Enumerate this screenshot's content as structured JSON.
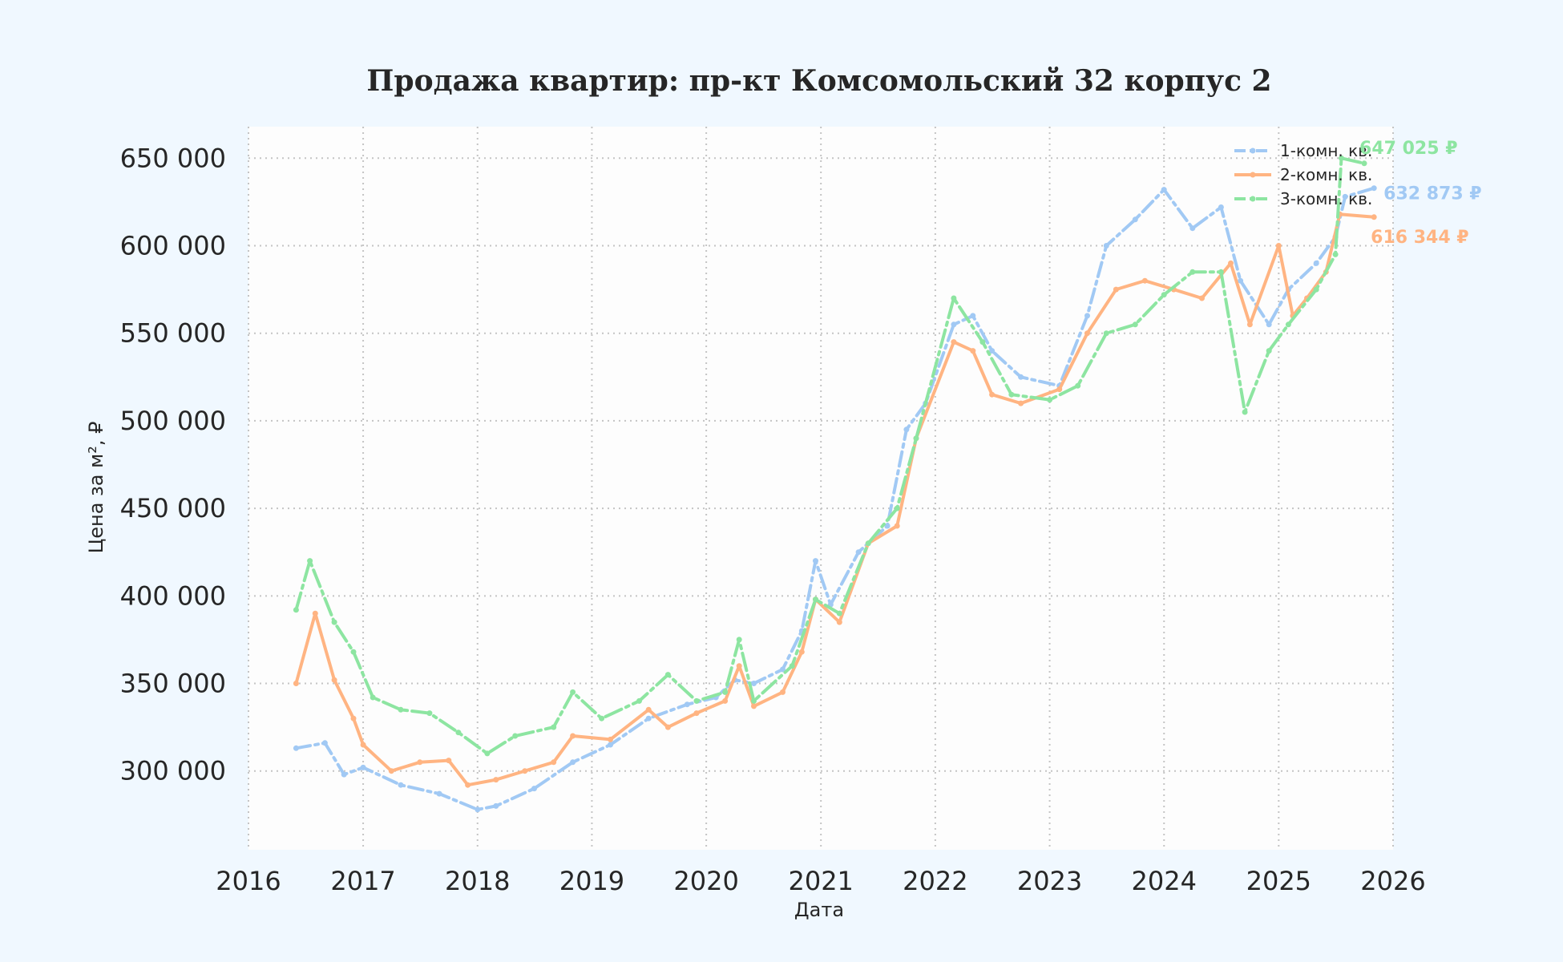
{
  "chart_data": {
    "type": "line",
    "title": "Продажа квартир: пр-кт Комсомольский 32 корпус 2",
    "xlabel": "Дата",
    "ylabel": "Цена за м², ₽",
    "xlim": [
      "2016-01-01",
      "2026-01-01"
    ],
    "ylim": [
      255000,
      668000
    ],
    "grid": true,
    "grid_style": "dotted",
    "legend_position": "top-right",
    "x_ticks": [
      "2016",
      "2017",
      "2018",
      "2019",
      "2020",
      "2021",
      "2022",
      "2023",
      "2024",
      "2025",
      "2026"
    ],
    "y_ticks": [
      {
        "value": 300000,
        "label": "300 000"
      },
      {
        "value": 350000,
        "label": "350 000"
      },
      {
        "value": 400000,
        "label": "400 000"
      },
      {
        "value": 450000,
        "label": "450 000"
      },
      {
        "value": 500000,
        "label": "500 000"
      },
      {
        "value": 550000,
        "label": "550 000"
      },
      {
        "value": 600000,
        "label": "600 000"
      },
      {
        "value": 650000,
        "label": "650 000"
      }
    ],
    "series": [
      {
        "name": "1-комн. кв.",
        "color": "#a1c9f4",
        "dash": "18,6,4,6",
        "end_label": "632 873 ₽",
        "points": [
          [
            "2016-06-01",
            313000
          ],
          [
            "2016-09-01",
            316000
          ],
          [
            "2016-11-01",
            298000
          ],
          [
            "2017-01-01",
            302000
          ],
          [
            "2017-05-01",
            292000
          ],
          [
            "2017-09-01",
            287000
          ],
          [
            "2018-01-01",
            278000
          ],
          [
            "2018-03-01",
            280000
          ],
          [
            "2018-07-01",
            290000
          ],
          [
            "2018-11-01",
            305000
          ],
          [
            "2019-03-01",
            315000
          ],
          [
            "2019-07-01",
            330000
          ],
          [
            "2019-11-01",
            338000
          ],
          [
            "2020-02-01",
            342000
          ],
          [
            "2020-04-01",
            352000
          ],
          [
            "2020-06-01",
            350000
          ],
          [
            "2020-09-01",
            358000
          ],
          [
            "2020-11-01",
            380000
          ],
          [
            "2020-12-15",
            420000
          ],
          [
            "2021-02-01",
            395000
          ],
          [
            "2021-05-01",
            425000
          ],
          [
            "2021-08-01",
            440000
          ],
          [
            "2021-10-01",
            495000
          ],
          [
            "2021-12-01",
            510000
          ],
          [
            "2022-03-01",
            555000
          ],
          [
            "2022-05-01",
            560000
          ],
          [
            "2022-07-01",
            540000
          ],
          [
            "2022-10-01",
            525000
          ],
          [
            "2023-02-01",
            520000
          ],
          [
            "2023-05-01",
            560000
          ],
          [
            "2023-07-01",
            600000
          ],
          [
            "2023-10-01",
            615000
          ],
          [
            "2024-01-01",
            632000
          ],
          [
            "2024-04-01",
            610000
          ],
          [
            "2024-07-01",
            622000
          ],
          [
            "2024-09-01",
            580000
          ],
          [
            "2024-12-01",
            555000
          ],
          [
            "2025-02-01",
            575000
          ],
          [
            "2025-05-01",
            590000
          ],
          [
            "2025-07-01",
            605000
          ],
          [
            "2025-08-01",
            628000
          ],
          [
            "2025-11-01",
            632873
          ]
        ]
      },
      {
        "name": "2-комн. кв.",
        "color": "#ffb482",
        "dash": "",
        "end_label": "616 344 ₽",
        "points": [
          [
            "2016-06-01",
            350000
          ],
          [
            "2016-08-01",
            390000
          ],
          [
            "2016-10-01",
            352000
          ],
          [
            "2016-12-01",
            330000
          ],
          [
            "2017-01-01",
            315000
          ],
          [
            "2017-04-01",
            300000
          ],
          [
            "2017-07-01",
            305000
          ],
          [
            "2017-10-01",
            306000
          ],
          [
            "2017-12-01",
            292000
          ],
          [
            "2018-03-01",
            295000
          ],
          [
            "2018-06-01",
            300000
          ],
          [
            "2018-09-01",
            305000
          ],
          [
            "2018-11-01",
            320000
          ],
          [
            "2019-03-01",
            318000
          ],
          [
            "2019-07-01",
            335000
          ],
          [
            "2019-09-01",
            325000
          ],
          [
            "2019-12-01",
            333000
          ],
          [
            "2020-03-01",
            340000
          ],
          [
            "2020-04-15",
            360000
          ],
          [
            "2020-06-01",
            337000
          ],
          [
            "2020-09-01",
            345000
          ],
          [
            "2020-11-01",
            368000
          ],
          [
            "2020-12-15",
            398000
          ],
          [
            "2021-03-01",
            385000
          ],
          [
            "2021-06-01",
            430000
          ],
          [
            "2021-09-01",
            440000
          ],
          [
            "2021-11-01",
            490000
          ],
          [
            "2022-03-01",
            545000
          ],
          [
            "2022-05-01",
            540000
          ],
          [
            "2022-07-01",
            515000
          ],
          [
            "2022-10-01",
            510000
          ],
          [
            "2023-02-01",
            518000
          ],
          [
            "2023-05-01",
            550000
          ],
          [
            "2023-08-01",
            575000
          ],
          [
            "2023-11-01",
            580000
          ],
          [
            "2024-02-01",
            575000
          ],
          [
            "2024-05-01",
            570000
          ],
          [
            "2024-08-01",
            590000
          ],
          [
            "2024-10-01",
            555000
          ],
          [
            "2025-01-01",
            600000
          ],
          [
            "2025-02-15",
            560000
          ],
          [
            "2025-04-01",
            570000
          ],
          [
            "2025-06-01",
            585000
          ],
          [
            "2025-07-15",
            618000
          ],
          [
            "2025-11-01",
            616344
          ]
        ]
      },
      {
        "name": "3-комн. кв.",
        "color": "#8de5a1",
        "dash": "22,6,4,6",
        "end_label": "647 025 ₽",
        "points": [
          [
            "2016-06-01",
            392000
          ],
          [
            "2016-07-15",
            420000
          ],
          [
            "2016-10-01",
            385000
          ],
          [
            "2016-12-01",
            368000
          ],
          [
            "2017-02-01",
            342000
          ],
          [
            "2017-05-01",
            335000
          ],
          [
            "2017-08-01",
            333000
          ],
          [
            "2017-11-01",
            322000
          ],
          [
            "2018-02-01",
            310000
          ],
          [
            "2018-05-01",
            320000
          ],
          [
            "2018-09-01",
            325000
          ],
          [
            "2018-11-01",
            345000
          ],
          [
            "2019-02-01",
            330000
          ],
          [
            "2019-06-01",
            340000
          ],
          [
            "2019-09-01",
            355000
          ],
          [
            "2019-12-01",
            340000
          ],
          [
            "2020-03-01",
            345000
          ],
          [
            "2020-04-15",
            375000
          ],
          [
            "2020-06-01",
            340000
          ],
          [
            "2020-10-01",
            360000
          ],
          [
            "2020-12-15",
            398000
          ],
          [
            "2021-03-01",
            390000
          ],
          [
            "2021-06-01",
            430000
          ],
          [
            "2021-09-01",
            450000
          ],
          [
            "2021-11-01",
            490000
          ],
          [
            "2022-03-01",
            570000
          ],
          [
            "2022-06-01",
            545000
          ],
          [
            "2022-09-01",
            515000
          ],
          [
            "2023-01-01",
            512000
          ],
          [
            "2023-04-01",
            520000
          ],
          [
            "2023-07-01",
            550000
          ],
          [
            "2023-10-01",
            555000
          ],
          [
            "2024-01-01",
            572000
          ],
          [
            "2024-04-01",
            585000
          ],
          [
            "2024-07-01",
            585000
          ],
          [
            "2024-09-15",
            505000
          ],
          [
            "2024-12-01",
            540000
          ],
          [
            "2025-02-01",
            555000
          ],
          [
            "2025-05-01",
            575000
          ],
          [
            "2025-07-01",
            595000
          ],
          [
            "2025-07-20",
            650000
          ],
          [
            "2025-10-01",
            647025
          ]
        ]
      }
    ]
  }
}
